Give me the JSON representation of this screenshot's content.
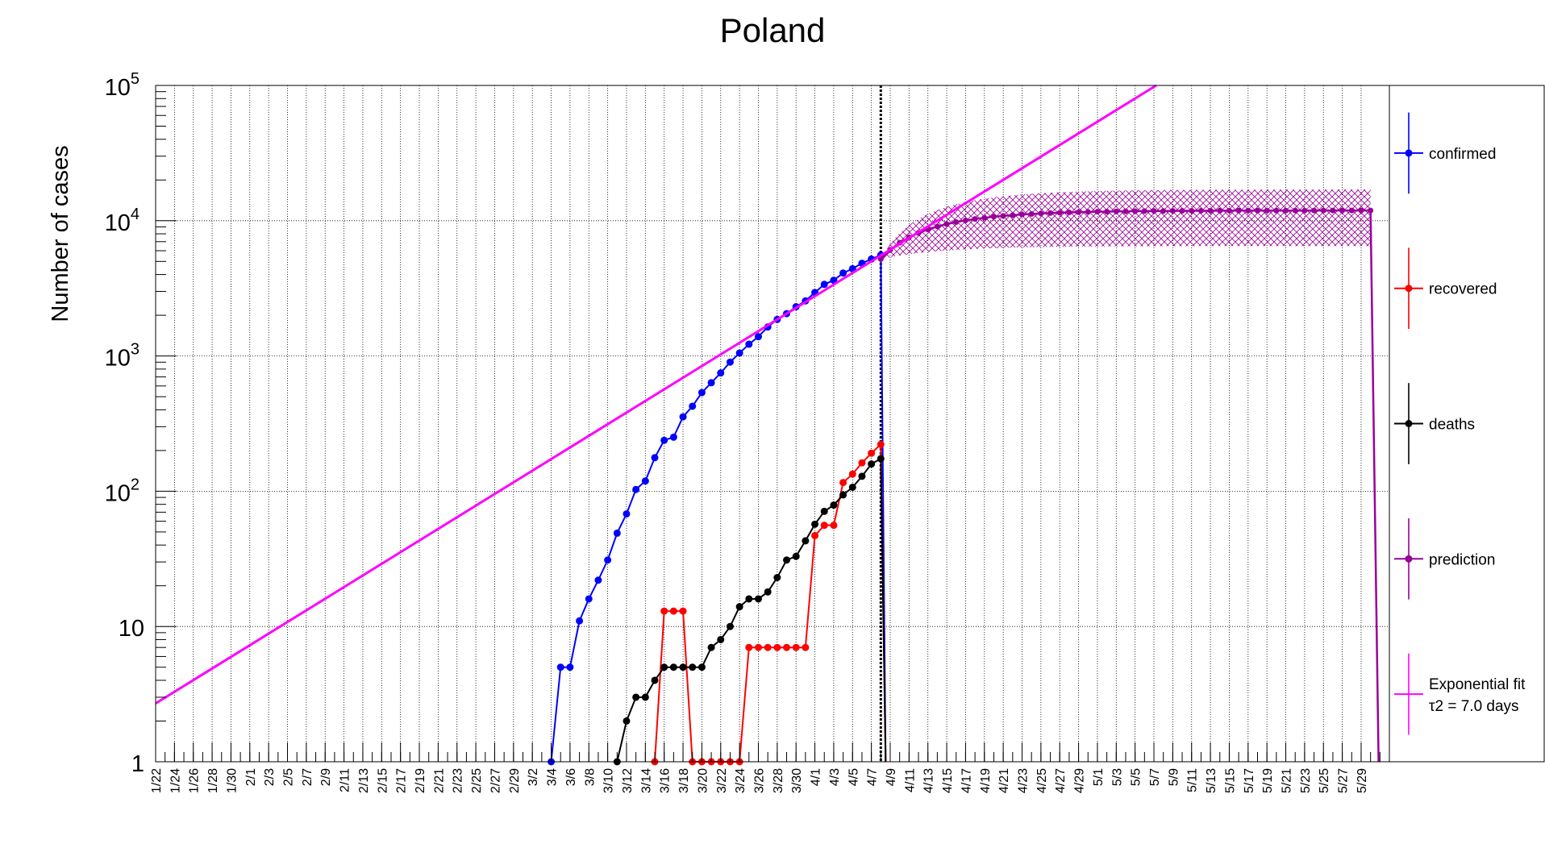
{
  "chart_data": {
    "type": "line",
    "title": "Poland",
    "ylabel": "Number of cases",
    "xlabel": "",
    "y_scale": "log",
    "ylim": [
      1,
      100000
    ],
    "y_ticks": [
      "1",
      "10",
      "10^2",
      "10^3",
      "10^4",
      "10^5"
    ],
    "x_tick_labels": [
      "1/22",
      "1/24",
      "1/26",
      "1/28",
      "1/30",
      "2/1",
      "2/3",
      "2/5",
      "2/7",
      "2/9",
      "2/11",
      "2/13",
      "2/15",
      "2/17",
      "2/19",
      "2/21",
      "2/23",
      "2/25",
      "2/27",
      "2/29",
      "3/2",
      "3/4",
      "3/6",
      "3/8",
      "3/10",
      "3/12",
      "3/14",
      "3/16",
      "3/18",
      "3/20",
      "3/22",
      "3/24",
      "3/26",
      "3/28",
      "3/30",
      "4/1",
      "4/3",
      "4/5",
      "4/7",
      "4/9",
      "4/11",
      "4/13",
      "4/15",
      "4/17",
      "4/19",
      "4/21",
      "4/23",
      "4/25",
      "4/27",
      "4/29",
      "5/1",
      "5/3",
      "5/5",
      "5/7",
      "5/9",
      "5/11",
      "5/13",
      "5/15",
      "5/17",
      "5/19",
      "5/21",
      "5/23",
      "5/25",
      "5/27",
      "5/29"
    ],
    "x_range_days": [
      0,
      131
    ],
    "grid": true,
    "legend_position": "right",
    "vertical_marker_date": "4/8",
    "series": [
      {
        "name": "confirmed",
        "color": "#0000ff",
        "x": [
          "3/4",
          "3/5",
          "3/6",
          "3/7",
          "3/8",
          "3/9",
          "3/10",
          "3/11",
          "3/12",
          "3/13",
          "3/14",
          "3/15",
          "3/16",
          "3/17",
          "3/18",
          "3/19",
          "3/20",
          "3/21",
          "3/22",
          "3/23",
          "3/24",
          "3/25",
          "3/26",
          "3/27",
          "3/28",
          "3/29",
          "3/30",
          "3/31",
          "4/1",
          "4/2",
          "4/3",
          "4/4",
          "4/5",
          "4/6",
          "4/7",
          "4/8"
        ],
        "y": [
          1,
          5,
          5,
          11,
          16,
          22,
          31,
          49,
          68,
          103,
          119,
          177,
          238,
          251,
          355,
          425,
          536,
          634,
          749,
          901,
          1051,
          1221,
          1389,
          1638,
          1862,
          2055,
          2311,
          2554,
          2946,
          3383,
          3627,
          4102,
          4413,
          4848,
          5205,
          5575
        ]
      },
      {
        "name": "recovered",
        "color": "#ff0000",
        "x": [
          "3/15",
          "3/16",
          "3/17",
          "3/18",
          "3/19",
          "3/20",
          "3/21",
          "3/22",
          "3/23",
          "3/24",
          "3/25",
          "3/26",
          "3/27",
          "3/28",
          "3/29",
          "3/30",
          "3/31",
          "4/1",
          "4/2",
          "4/3",
          "4/4",
          "4/5",
          "4/6",
          "4/7",
          "4/8"
        ],
        "y": [
          1,
          13,
          13,
          13,
          1,
          1,
          1,
          1,
          1,
          1,
          7,
          7,
          7,
          7,
          7,
          7,
          7,
          47,
          56,
          56,
          116,
          134,
          162,
          191,
          222
        ]
      },
      {
        "name": "deaths",
        "color": "#000000",
        "x": [
          "3/11",
          "3/12",
          "3/13",
          "3/14",
          "3/15",
          "3/16",
          "3/17",
          "3/18",
          "3/19",
          "3/20",
          "3/21",
          "3/22",
          "3/23",
          "3/24",
          "3/25",
          "3/26",
          "3/27",
          "3/28",
          "3/29",
          "3/30",
          "3/31",
          "4/1",
          "4/2",
          "4/3",
          "4/4",
          "4/5",
          "4/6",
          "4/7",
          "4/8"
        ],
        "y": [
          1,
          2,
          3,
          3,
          4,
          5,
          5,
          5,
          5,
          5,
          7,
          8,
          10,
          14,
          16,
          16,
          18,
          23,
          31,
          33,
          43,
          57,
          71,
          79,
          94,
          107,
          129,
          159,
          174
        ]
      },
      {
        "name": "prediction",
        "color": "#990099",
        "x_start": "4/8",
        "x_end": "5/30",
        "start_value": 5205,
        "plateau_value": 11900,
        "band_low_at_end": 6500,
        "band_high_at_end": 17000
      },
      {
        "name": "Exponential fit",
        "label_line2": "τ2 = 7.0 days",
        "color": "#ff00ff",
        "doubling_time_days": 7.0,
        "x_start": "1/22",
        "y_at_start": 2.7
      }
    ]
  }
}
